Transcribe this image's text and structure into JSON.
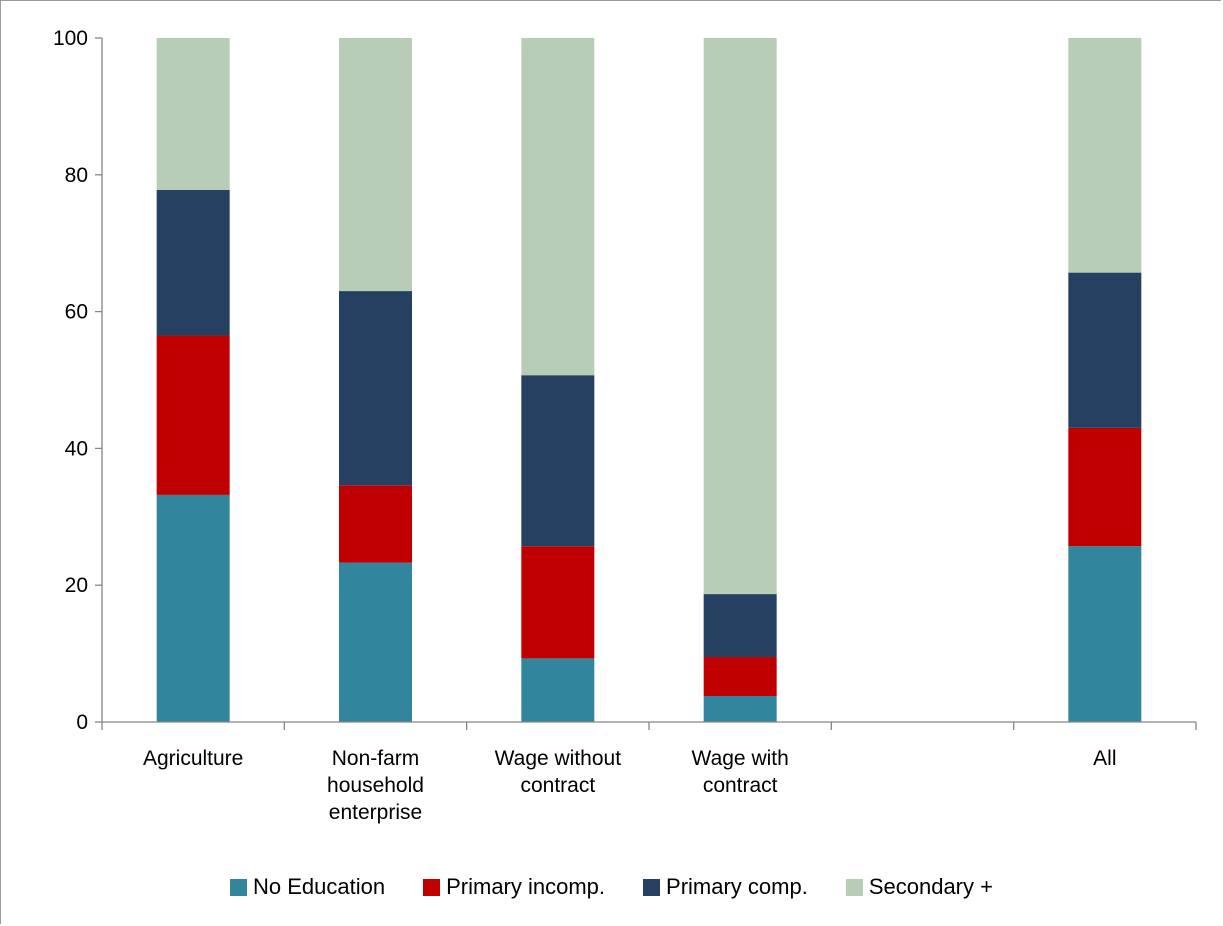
{
  "chart_data": {
    "type": "bar",
    "stacked": true,
    "categories": [
      "Agriculture",
      "Non-farm household enterprise",
      "Wage without contract",
      "Wage with contract",
      "",
      "All"
    ],
    "category_lines": [
      [
        "Agriculture"
      ],
      [
        "Non-farm",
        "household",
        "enterprise"
      ],
      [
        "Wage without",
        "contract"
      ],
      [
        "Wage with",
        "contract"
      ],
      [],
      [
        "All"
      ]
    ],
    "series": [
      {
        "name": "No Education",
        "color": "#31859c",
        "values": [
          33.2,
          23.3,
          9.3,
          3.8,
          null,
          25.7
        ]
      },
      {
        "name": "Primary incomp.",
        "color": "#c00000",
        "values": [
          23.3,
          11.3,
          16.4,
          5.7,
          null,
          17.3
        ]
      },
      {
        "name": "Primary comp.",
        "color": "#254061",
        "values": [
          21.3,
          28.4,
          25.0,
          9.2,
          null,
          22.7
        ]
      },
      {
        "name": "Secondary +",
        "color": "#b7cdb6",
        "values": [
          22.2,
          37.0,
          49.3,
          81.3,
          null,
          34.3
        ]
      }
    ],
    "ylim": [
      0,
      100
    ],
    "yticks": [
      0,
      20,
      40,
      60,
      80,
      100
    ],
    "legend_position": "bottom",
    "grid": false
  }
}
